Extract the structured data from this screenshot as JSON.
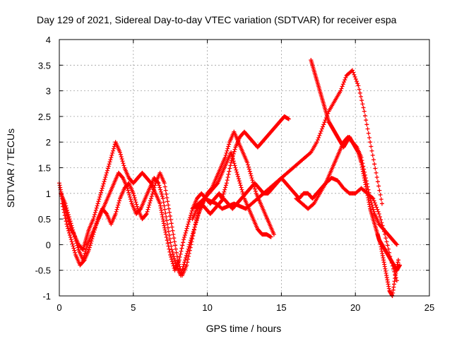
{
  "chart_data": {
    "type": "scatter",
    "title": "Day 129 of 2021, Sidereal Day-to-day VTEC variation (SDTVAR) for receiver espa",
    "xlabel": "GPS time / hours",
    "ylabel": "SDTVAR / TECUs",
    "xlim": [
      0,
      25
    ],
    "ylim": [
      -1,
      4
    ],
    "xticks": [
      "0",
      "5",
      "10",
      "15",
      "20",
      "25"
    ],
    "yticks": [
      "-1",
      "-0.5",
      "0",
      "0.5",
      "1",
      "1.5",
      "2",
      "2.5",
      "3",
      "3.5",
      "4"
    ],
    "grid": true,
    "marker": "+",
    "marker_color": "#ff0000",
    "series": [
      {
        "x": [
          0.0,
          0.2,
          0.4,
          0.6,
          0.8,
          1.0,
          1.3,
          1.6,
          1.8,
          2.0,
          2.3,
          2.6,
          2.9,
          3.2,
          3.5,
          3.8,
          4.1,
          4.4,
          4.7,
          5.0,
          5.3,
          5.6,
          5.9,
          6.2,
          6.5,
          6.8,
          7.0,
          7.2,
          7.5,
          7.8,
          8.1,
          8.4,
          8.7,
          9.0,
          9.3,
          9.6,
          9.9,
          10.2,
          10.5,
          10.8,
          11.0,
          11.3,
          11.6,
          11.9,
          12.2,
          12.5,
          12.8,
          13.1,
          13.4,
          13.7,
          14.0,
          14.3,
          14.6,
          14.9,
          15.2,
          15.5
        ],
        "y": [
          1.2,
          0.9,
          0.7,
          0.5,
          0.3,
          0.2,
          0.0,
          -0.1,
          0.1,
          0.3,
          0.5,
          0.8,
          1.1,
          1.4,
          1.7,
          2.0,
          1.8,
          1.5,
          1.3,
          1.2,
          1.3,
          1.4,
          1.3,
          1.2,
          1.0,
          0.8,
          0.5,
          0.2,
          -0.2,
          -0.5,
          -0.3,
          0.1,
          0.4,
          0.7,
          0.9,
          1.0,
          0.9,
          0.8,
          0.9,
          1.0,
          0.9,
          1.2,
          1.6,
          1.9,
          2.1,
          2.2,
          2.1,
          2.0,
          1.9,
          2.0,
          2.1,
          2.2,
          2.3,
          2.4,
          2.5,
          2.45
        ]
      },
      {
        "x": [
          0.1,
          0.4,
          0.7,
          1.0,
          1.3,
          1.6,
          1.9,
          2.2,
          2.5,
          2.8,
          3.1,
          3.4,
          3.7,
          4.0,
          4.3,
          4.6,
          4.9,
          5.2,
          5.5,
          5.8,
          6.1,
          6.4,
          6.7,
          7.0,
          7.3,
          7.6,
          7.9,
          8.2,
          8.5,
          8.8,
          9.1,
          9.4,
          9.7,
          10.0,
          10.3,
          10.6,
          10.9,
          11.2,
          11.5,
          11.8,
          12.1,
          12.4,
          12.7,
          13.0,
          13.3,
          13.6,
          13.9,
          14.2,
          14.5
        ],
        "y": [
          1.0,
          0.8,
          0.5,
          0.2,
          -0.1,
          -0.3,
          0.0,
          0.2,
          0.4,
          0.6,
          0.8,
          1.0,
          1.2,
          1.4,
          1.3,
          1.1,
          0.8,
          0.6,
          0.7,
          0.9,
          1.1,
          1.3,
          1.2,
          0.9,
          0.4,
          -0.1,
          -0.4,
          -0.6,
          -0.3,
          0.0,
          0.3,
          0.6,
          0.8,
          1.0,
          1.1,
          1.3,
          1.5,
          1.7,
          2.0,
          2.2,
          2.0,
          1.8,
          1.6,
          1.3,
          1.0,
          0.8,
          0.6,
          0.4,
          0.2
        ]
      },
      {
        "x": [
          0.2,
          0.5,
          0.8,
          1.1,
          1.4,
          1.7,
          2.0,
          2.3,
          2.6,
          2.9,
          3.2,
          3.5,
          3.8,
          4.1,
          4.4,
          4.7,
          5.0,
          5.3,
          5.6,
          5.9,
          6.2,
          6.5,
          6.8,
          7.1,
          7.4,
          7.7,
          8.0,
          8.3,
          8.6,
          8.9,
          9.2,
          9.5,
          9.8,
          10.1,
          10.4,
          10.7,
          11.0,
          11.3,
          11.6,
          11.9,
          12.2,
          12.5,
          12.8,
          13.1,
          13.4,
          13.7,
          14.0,
          14.3
        ],
        "y": [
          0.8,
          0.4,
          0.1,
          -0.2,
          -0.4,
          -0.3,
          -0.1,
          0.2,
          0.5,
          0.7,
          0.6,
          0.4,
          0.6,
          0.9,
          1.1,
          1.2,
          1.0,
          0.7,
          0.5,
          0.6,
          0.9,
          1.2,
          1.4,
          1.2,
          0.7,
          0.2,
          -0.3,
          -0.6,
          -0.4,
          0.0,
          0.4,
          0.7,
          0.9,
          1.0,
          1.1,
          1.2,
          1.4,
          1.6,
          1.8,
          1.5,
          1.2,
          0.9,
          0.7,
          0.5,
          0.3,
          0.2,
          0.2,
          0.15
        ]
      },
      {
        "x": [
          9.0,
          9.3,
          9.6,
          9.9,
          10.2,
          10.5,
          10.8,
          11.1,
          11.4,
          11.7,
          12.0,
          12.3,
          12.6,
          12.9,
          13.2,
          13.5,
          13.8,
          14.1,
          14.4,
          14.7,
          15.0,
          15.3,
          15.6,
          15.9,
          16.2,
          16.5,
          16.8,
          17.1,
          17.4,
          17.7,
          18.0,
          18.3,
          18.6,
          18.9,
          19.2,
          19.5,
          19.8,
          20.1,
          20.4,
          20.7,
          21.0,
          21.3,
          21.6,
          21.9,
          22.2,
          22.5,
          22.8
        ],
        "y": [
          0.5,
          0.7,
          0.8,
          0.7,
          0.6,
          0.7,
          0.8,
          0.9,
          0.8,
          0.7,
          0.8,
          0.9,
          1.0,
          1.1,
          1.2,
          1.1,
          1.0,
          1.0,
          1.1,
          1.2,
          1.3,
          1.2,
          1.1,
          1.0,
          0.9,
          1.0,
          1.0,
          0.9,
          1.0,
          1.1,
          1.2,
          1.4,
          1.6,
          1.8,
          2.0,
          2.1,
          2.0,
          1.9,
          1.7,
          1.3,
          0.9,
          0.6,
          0.4,
          0.3,
          0.2,
          0.1,
          0.0
        ]
      },
      {
        "x": [
          9.0,
          9.4,
          9.8,
          10.2,
          10.6,
          11.0,
          11.4,
          11.8,
          12.2,
          12.6,
          13.0,
          13.4,
          13.8,
          14.2,
          14.6,
          15.0,
          15.4,
          15.8,
          16.2,
          16.6,
          17.0,
          17.4,
          17.8,
          18.2,
          18.6,
          19.0,
          19.4,
          19.8,
          20.2,
          20.6,
          21.0,
          21.4,
          21.8
        ],
        "y": [
          0.7,
          0.8,
          0.9,
          0.85,
          0.8,
          0.7,
          0.75,
          0.8,
          0.75,
          0.7,
          0.8,
          0.9,
          1.0,
          1.1,
          1.2,
          1.3,
          1.4,
          1.5,
          1.6,
          1.7,
          1.8,
          2.0,
          2.3,
          2.6,
          2.8,
          3.0,
          3.3,
          3.4,
          3.1,
          2.6,
          2.0,
          1.4,
          0.8
        ]
      },
      {
        "x": [
          17.0,
          17.2,
          17.4,
          17.6,
          17.8,
          18.0,
          18.2,
          18.4,
          18.6,
          18.8,
          19.0,
          19.2,
          19.4,
          19.6,
          19.8,
          20.0,
          20.2,
          20.4,
          20.6,
          20.8,
          21.0,
          21.2,
          21.4,
          21.6,
          21.8,
          22.0,
          22.2,
          22.4,
          22.6,
          22.8,
          23.0
        ],
        "y": [
          3.6,
          3.4,
          3.2,
          3.0,
          2.8,
          2.6,
          2.4,
          2.3,
          2.2,
          2.1,
          2.0,
          1.9,
          2.0,
          2.1,
          2.0,
          1.9,
          1.8,
          1.6,
          1.3,
          1.0,
          0.7,
          0.5,
          0.3,
          0.1,
          0.0,
          -0.1,
          -0.2,
          -0.3,
          -0.4,
          -0.5,
          -0.4
        ]
      },
      {
        "x": [
          16.0,
          16.4,
          16.8,
          17.2,
          17.6,
          18.0,
          18.4,
          18.8,
          19.2,
          19.6,
          20.0,
          20.4,
          20.8,
          21.2,
          21.6,
          22.0,
          22.4,
          22.8
        ],
        "y": [
          0.9,
          0.8,
          0.7,
          0.8,
          1.0,
          1.2,
          1.3,
          1.25,
          1.1,
          1.0,
          1.0,
          1.1,
          1.0,
          0.9,
          0.6,
          0.2,
          -0.3,
          -0.7
        ]
      },
      {
        "x": [
          21.5,
          21.7,
          21.9,
          22.1,
          22.3,
          22.5,
          22.7,
          22.9
        ],
        "y": [
          0.2,
          0.0,
          -0.3,
          -0.6,
          -0.9,
          -1.0,
          -0.6,
          -0.3
        ]
      }
    ]
  }
}
